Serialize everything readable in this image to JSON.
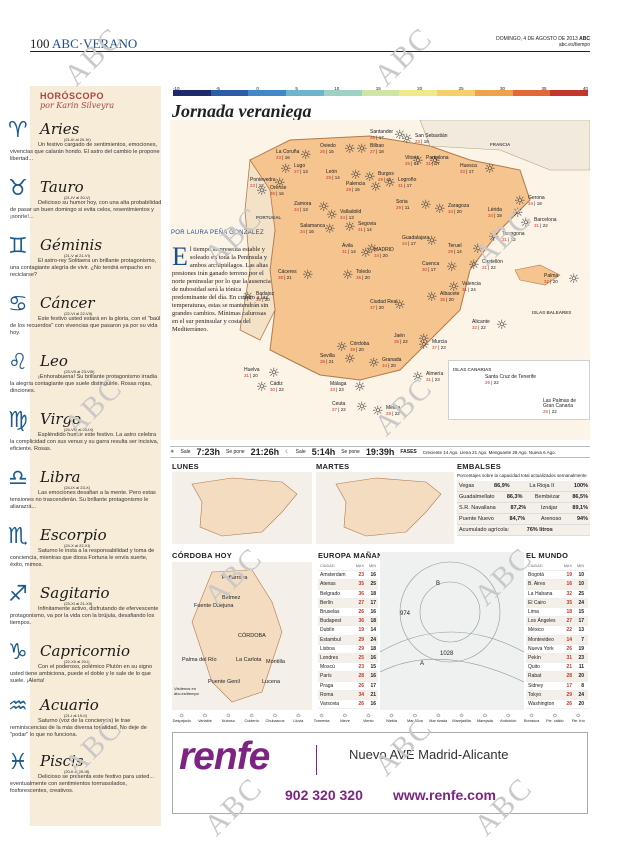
{
  "header": {
    "page": "100",
    "section": "ABC·VERANO",
    "date": "DOMINGO, 4 DE AGOSTO DE 2013",
    "brand": "ABC",
    "url": "abc.es/tiempo"
  },
  "watermark": "ABC",
  "horoscope": {
    "title": "HORÓSCOPO",
    "author": "por Karin Silveyra",
    "signs": [
      {
        "glyph": "♈",
        "name": "Aries",
        "dates": "(21-III al 20-IV)",
        "text": "Un festivo cargado de sentimientos, emociones, vivencias que calarán hondo. El astro del cambio le propone libertad..."
      },
      {
        "glyph": "♉",
        "name": "Tauro",
        "dates": "(21-IV al 20-V)",
        "text": "Delicioso su humor hoy, con una alta probabilidad de pasar un buen domingo si evita celos, resentimientos y ¡sonríe!..."
      },
      {
        "glyph": "♊",
        "name": "Géminis",
        "dates": "(21-V al 21-VI)",
        "text": "El astro-rey Solitaera un brillante protagonismo, una contagiante alegría de vivir. ¿No tendrá empacho en reciclarse?"
      },
      {
        "glyph": "♋",
        "name": "Cáncer",
        "dates": "(22-VI al 22-VII)",
        "text": "Este festivo usted estará en la gloria, con el \"baúl de los recuerdos\" con vivencias que pasaron ya por su vida hoy."
      },
      {
        "glyph": "♌",
        "name": "Leo",
        "dates": "(23-VII al 23-VIII)",
        "text": "¡Enhorabuena! Su brillante protagonismo irradia la alegría contagiante que suele distinguirle. Rosas rojas, dinciones."
      },
      {
        "glyph": "♍",
        "name": "Virgo",
        "dates": "(24-VIII al 23-IX)",
        "text": "Espléndido humor este festivo. La astro celebra la complicidad con sus venus y su garra resulta ser incisiva, eficiente. Rosas."
      },
      {
        "glyph": "♎",
        "name": "Libra",
        "dates": "(24-IX al 23-X)",
        "text": "Las emociones desafian a la mente. Pero estas tensiones no trascenderán. Su brillante protagonismo le aliarazrá..."
      },
      {
        "glyph": "♏",
        "name": "Escorpio",
        "dates": "(24-X al 22-XI)",
        "text": "Saturno le insta a la responsabilidad y toma de conciencia, mientras que diosa Fortuna le envía suerte, éxito, mimos."
      },
      {
        "glyph": "♐",
        "name": "Sagitario",
        "dates": "(23-XI al 21-XII)",
        "text": "Infinitamente activo, disfrutando de efervescente protagonismo, va por la vida con la brújula, desafiando los tiempos."
      },
      {
        "glyph": "♑",
        "name": "Capricornio",
        "dates": "(22-XII al 20-I)",
        "text": "Con el poderoso, polémico Plutón en su signo usted tiene ambiciona, puede el doble y le sale de lo que suele. ¡Alerta!"
      },
      {
        "glyph": "♒",
        "name": "Acuario",
        "dates": "(21-I al 19-II)",
        "text": "Saturno (voz de la conciencia) le trae reminiscencias de la más diversa tonalidad. No deje de \"podar\" lo que no funciona."
      },
      {
        "glyph": "♓",
        "name": "Piscis",
        "dates": "(20-II al 20-III)",
        "text": "Delicioso se presenta este festivo para usted... eventualmente con sentimientos tormasolados, fosforescentes, creativos."
      }
    ]
  },
  "scale": {
    "labels": [
      "-10",
      "-5",
      "0",
      "5",
      "10",
      "15",
      "20",
      "25",
      "30",
      "35",
      "40"
    ],
    "colors": [
      "#1d2a6e",
      "#2c5da6",
      "#3f88c5",
      "#6fb4cf",
      "#9fd0c4",
      "#cfe5a6",
      "#f1e98a",
      "#f7cf6a",
      "#f0a14b",
      "#e2683a",
      "#c2362c"
    ]
  },
  "map": {
    "title": "Jornada veraniega",
    "byline": "POR LAURA PEÑA GONZÁLEZ",
    "intro_drop": "E",
    "intro": "l tiempo se presenta estable y soleado en toda la Península y ambos archipiélagos. Las altas presiones irán ganado terreno por el norte peninsular por lo que la ausencia de nubosidad será la tónica predominante del día. En cuanto a las temperaturas, estas se mantendrán sin grandes cambios. Mínimas calurosas en el sur peninsular y costa del Mediterráneo.",
    "region_labels": {
      "france": "FRANCIA",
      "portugal": "PORTUGAL",
      "baleares": "ISLAS BALEARES",
      "canarias": "ISLAS CANARIAS"
    },
    "cities": [
      {
        "n": "Santander",
        "mn": "26",
        "mx": "17"
      },
      {
        "n": "San Sebastián",
        "mn": "23",
        "mx": "18"
      },
      {
        "n": "Oviedo",
        "mn": "26",
        "mx": "15"
      },
      {
        "n": "Bilbao",
        "mn": "27",
        "mx": "18"
      },
      {
        "n": "La Coruña",
        "mn": "23",
        "mx": "16"
      },
      {
        "n": "Lugo",
        "mn": "27",
        "mx": "13"
      },
      {
        "n": "Vitoria",
        "mn": "26",
        "mx": "14"
      },
      {
        "n": "Pamplona",
        "mn": "31",
        "mx": "17"
      },
      {
        "n": "León",
        "mn": "29",
        "mx": "14"
      },
      {
        "n": "Burgos",
        "mn": "29",
        "mx": "11"
      },
      {
        "n": "Pontevedra",
        "mn": "23",
        "mx": "12"
      },
      {
        "n": "Orense",
        "mn": "36",
        "mx": "16"
      },
      {
        "n": "Palencia",
        "mn": "29",
        "mx": "16"
      },
      {
        "n": "Logroño",
        "mn": "31",
        "mx": "17"
      },
      {
        "n": "Huesca",
        "mn": "33",
        "mx": "17"
      },
      {
        "n": "Gerona",
        "mn": "34",
        "mx": "18"
      },
      {
        "n": "Zamora",
        "mn": "34",
        "mx": "13"
      },
      {
        "n": "Valladolid",
        "mn": "34",
        "mx": "13"
      },
      {
        "n": "Soria",
        "mn": "29",
        "mx": "11"
      },
      {
        "n": "Zaragoza",
        "mn": "34",
        "mx": "20"
      },
      {
        "n": "Lérida",
        "mn": "34",
        "mx": "18"
      },
      {
        "n": "Barcelona",
        "mn": "31",
        "mx": "22"
      },
      {
        "n": "Salamanca",
        "mn": "34",
        "mx": "16"
      },
      {
        "n": "Segovia",
        "mn": "31",
        "mx": "14"
      },
      {
        "n": "Guadalajara",
        "mn": "34",
        "mx": "17"
      },
      {
        "n": "Tarragona",
        "mn": "31",
        "mx": "22"
      },
      {
        "n": "Ávila",
        "mn": "31",
        "mx": "14"
      },
      {
        "n": "MADRID",
        "mn": "34",
        "mx": "20"
      },
      {
        "n": "Teruel",
        "mn": "29",
        "mx": "14"
      },
      {
        "n": "Castellón",
        "mn": "31",
        "mx": "22"
      },
      {
        "n": "Cáceres",
        "mn": "38",
        "mx": "21"
      },
      {
        "n": "Toledo",
        "mn": "36",
        "mx": "20"
      },
      {
        "n": "Cuenca",
        "mn": "30",
        "mx": "17"
      },
      {
        "n": "Valencia",
        "mn": "31",
        "mx": "24"
      },
      {
        "n": "Palma",
        "mn": "32",
        "mx": "20"
      },
      {
        "n": "Badajoz",
        "mn": "38",
        "mx": "20"
      },
      {
        "n": "Ciudad Real",
        "mn": "37",
        "mx": "20"
      },
      {
        "n": "Albacete",
        "mn": "35",
        "mx": "20"
      },
      {
        "n": "Alicante",
        "mn": "32",
        "mx": "22"
      },
      {
        "n": "Córdoba",
        "mn": "39",
        "mx": "20"
      },
      {
        "n": "Jaén",
        "mn": "35",
        "mx": "22"
      },
      {
        "n": "Murcia",
        "mn": "37",
        "mx": "23"
      },
      {
        "n": "Sevilla",
        "mn": "38",
        "mx": "21"
      },
      {
        "n": "Granada",
        "mn": "34",
        "mx": "20"
      },
      {
        "n": "Huelva",
        "mn": "31",
        "mx": "20"
      },
      {
        "n": "Almería",
        "mn": "31",
        "mx": "23"
      },
      {
        "n": "Málaga",
        "mn": "33",
        "mx": "23"
      },
      {
        "n": "Cádiz",
        "mn": "30",
        "mx": "22"
      },
      {
        "n": "Ceuta",
        "mn": "27",
        "mx": "22"
      },
      {
        "n": "Melilla",
        "mn": "28",
        "mx": "22"
      },
      {
        "n": "Santa Cruz de Tenerife",
        "mn": "26",
        "mx": "22"
      },
      {
        "n": "Las Palmas de Gran Canaria",
        "mn": "26",
        "mx": "22"
      }
    ]
  },
  "sunbar": {
    "sale_lbl": "Sale",
    "sun_rise": "7:23h",
    "pone_lbl": "Se pone",
    "sun_set": "21:26h",
    "moon_rise": "5:14h",
    "moon_set": "19:39h",
    "phases_lbl": "FASES",
    "phases": "Creciente 14 Ago.  Llena 21 Ago.  Menguante 28 Ago.  Nueva 6 Ago."
  },
  "lunes": {
    "title": "LUNES"
  },
  "martes": {
    "title": "MARTES"
  },
  "embalses": {
    "title": "EMBALSES",
    "sub": "Porcentajes sobre la capacidad total actualizados semanalmente",
    "rows": [
      {
        "a": "Vegas",
        "av": "86,9%",
        "b": "La Rioja II",
        "bv": "100%"
      },
      {
        "a": "Guadalmellato",
        "av": "86,3%",
        "b": "Bembézar",
        "bv": "86,5%"
      },
      {
        "a": "S.R. Navallana",
        "av": "87,2%",
        "b": "Iznájar",
        "bv": "89,1%"
      },
      {
        "a": "Puente Nuevo",
        "av": "84,7%",
        "b": "Arenoso",
        "bv": "94%"
      },
      {
        "a": "Acumulado agrícola:",
        "av": "76% litros",
        "b": "",
        "bv": ""
      }
    ]
  },
  "cordoba": {
    "title": "CÓRDOBA HOY",
    "towns": [
      "Peñarroya",
      "Fuente Obejuna",
      "Bélmez",
      "CÓRDOBA",
      "Palma del Río",
      "La Carlota",
      "Montilla",
      "Puente Genil",
      "Lucena"
    ],
    "visitor": "Visítenos en abc.es/tiempo"
  },
  "europa": {
    "title": "EUROPA MAÑANA",
    "cols": [
      "CIUDAD",
      "MAX",
      "MIN"
    ],
    "rows": [
      [
        "Amsterdam",
        "23",
        "16"
      ],
      [
        "Atenas",
        "35",
        "25"
      ],
      [
        "Belgrado",
        "36",
        "18"
      ],
      [
        "Berlín",
        "27",
        "17"
      ],
      [
        "Bruselas",
        "26",
        "16"
      ],
      [
        "Budapest",
        "36",
        "18"
      ],
      [
        "Dublín",
        "19",
        "14"
      ],
      [
        "Estambul",
        "29",
        "24"
      ],
      [
        "Lisboa",
        "29",
        "18"
      ],
      [
        "Londres",
        "25",
        "16"
      ],
      [
        "Moscú",
        "23",
        "15"
      ],
      [
        "París",
        "28",
        "16"
      ],
      [
        "Praga",
        "26",
        "17"
      ],
      [
        "Roma",
        "34",
        "21"
      ],
      [
        "Varsovia",
        "26",
        "16"
      ]
    ],
    "map_labels": [
      "B",
      "A",
      "1028",
      "974"
    ]
  },
  "mundo": {
    "title": "EL MUNDO",
    "cols": [
      "CIUDAD",
      "MAX",
      "MIN"
    ],
    "rows": [
      [
        "Bogotá",
        "19",
        "10"
      ],
      [
        "B. Aires",
        "16",
        "10"
      ],
      [
        "La Habana",
        "32",
        "25"
      ],
      [
        "El Cairo",
        "35",
        "24"
      ],
      [
        "Lima",
        "18",
        "15"
      ],
      [
        "Los Ángeles",
        "27",
        "17"
      ],
      [
        "México",
        "22",
        "13"
      ],
      [
        "Montevideo",
        "14",
        "7"
      ],
      [
        "Nueva York",
        "26",
        "19"
      ],
      [
        "Pekín",
        "31",
        "23"
      ],
      [
        "Quito",
        "21",
        "11"
      ],
      [
        "Rabat",
        "28",
        "20"
      ],
      [
        "Sidney",
        "17",
        "8"
      ],
      [
        "Tokyo",
        "29",
        "24"
      ],
      [
        "Washington",
        "26",
        "20"
      ]
    ]
  },
  "legend": [
    "Despejado",
    "Variable",
    "Nuboso",
    "Cubierto",
    "Chubascos",
    "Lluvia",
    "Tormenta",
    "Nieve",
    "Viento",
    "Niebla",
    "Mar llana",
    "Mar rizada",
    "Marejadilla",
    "Marejada",
    "Anticiclón",
    "Borrasca",
    "Fte. cálido",
    "Fte. frío"
  ],
  "ad": {
    "brand": "renfe",
    "tagline": "Nuevo AVE Madrid-Alicante",
    "phone": "902 320 320",
    "url": "www.renfe.com"
  }
}
